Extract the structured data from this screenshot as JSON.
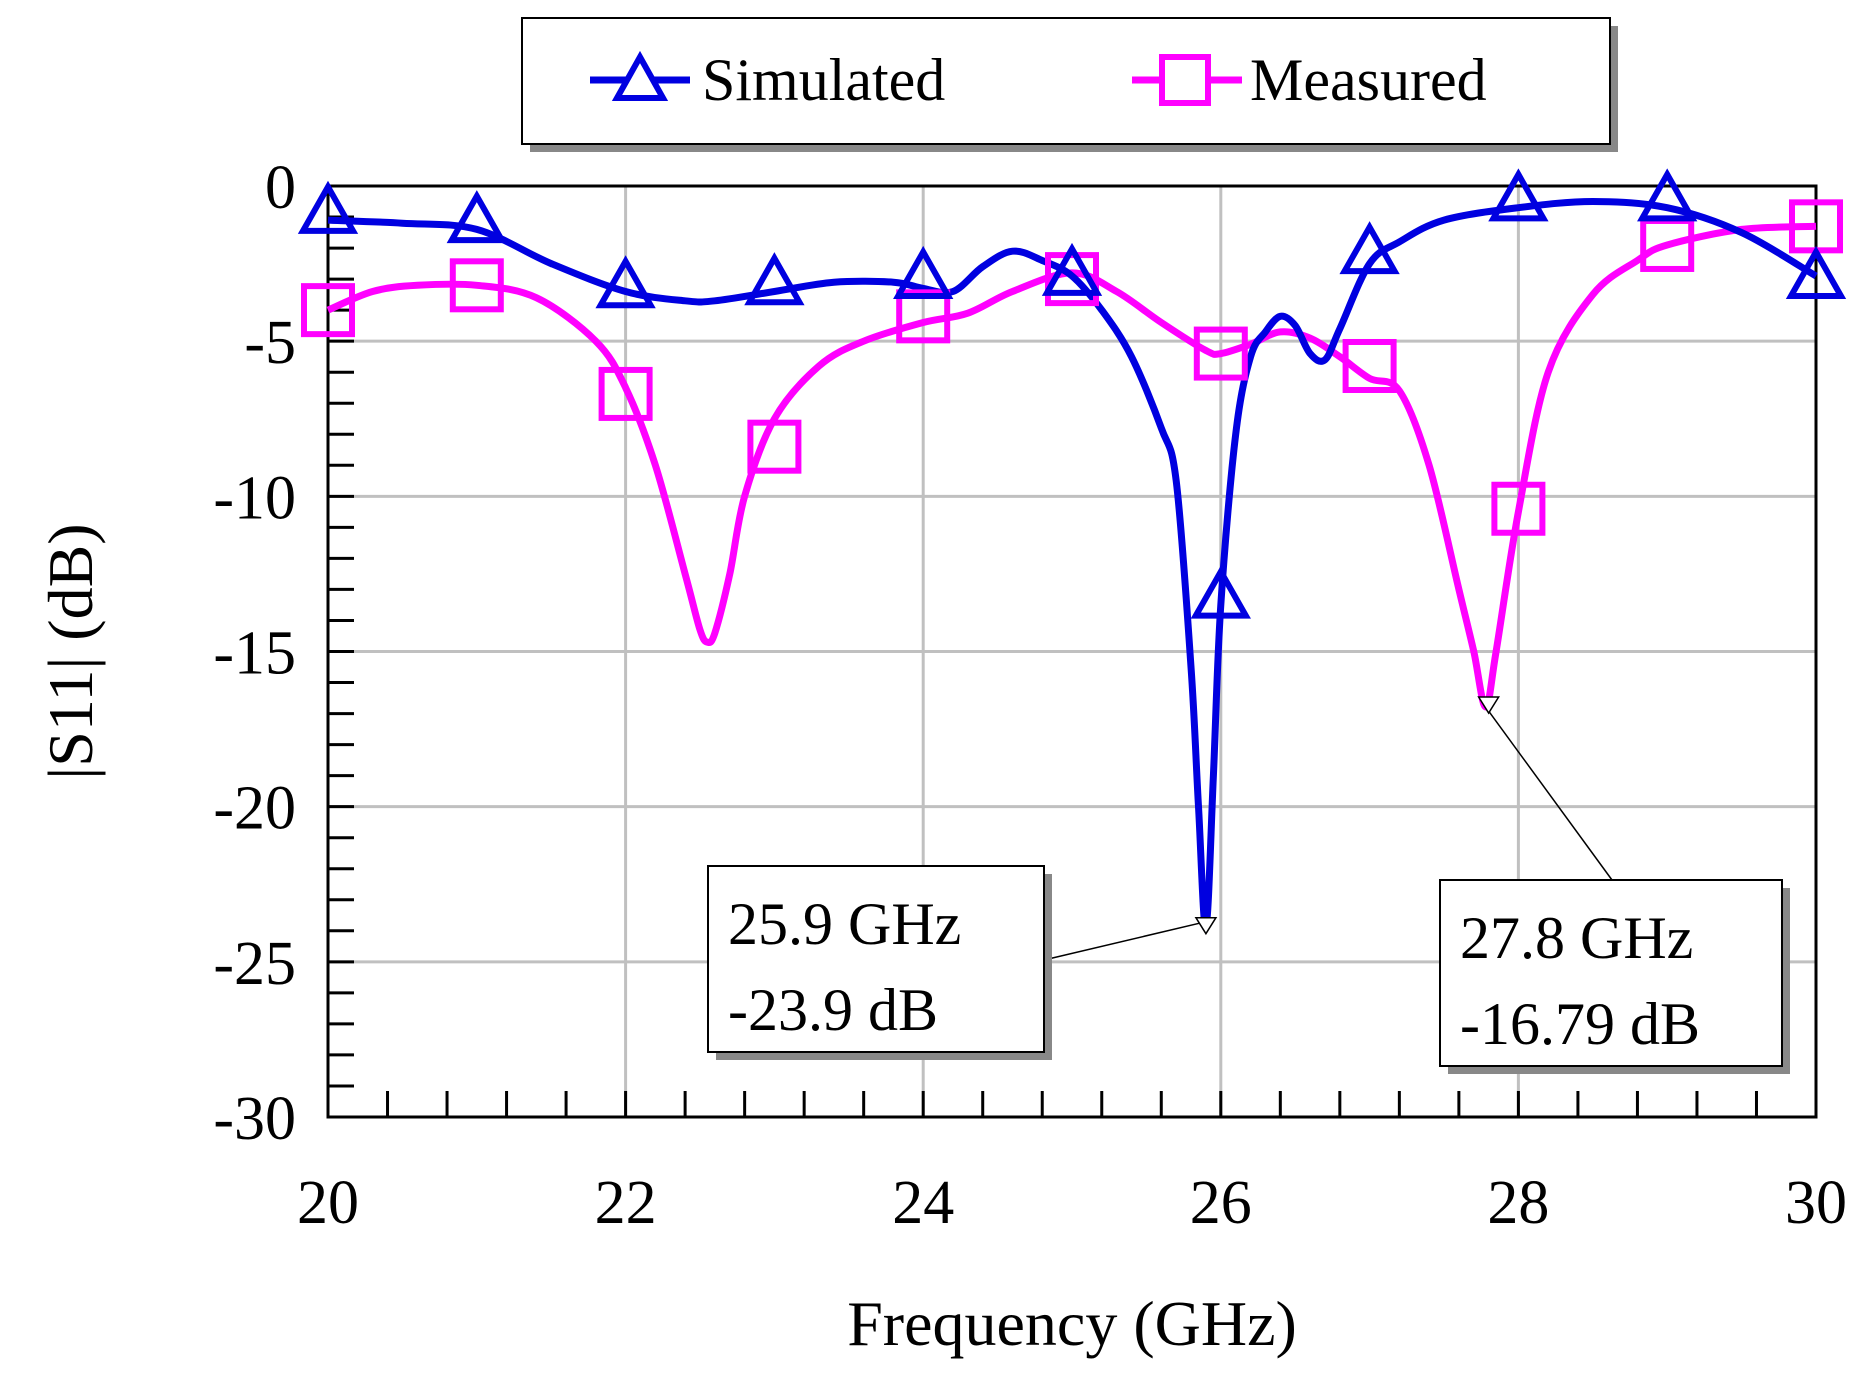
{
  "chart_data": {
    "type": "line",
    "xlabel": "Frequency (GHz)",
    "ylabel": "|S11| (dB)",
    "xlim": [
      20,
      30
    ],
    "ylim": [
      -30,
      0
    ],
    "xticks": [
      20,
      22,
      24,
      26,
      28,
      30
    ],
    "yticks": [
      0,
      -5,
      -10,
      -15,
      -20,
      -25,
      -30
    ],
    "xtick_labels": [
      "20",
      "22",
      "24",
      "26",
      "28",
      "30"
    ],
    "ytick_labels": [
      "0",
      "-5",
      "-10",
      "-15",
      "-20",
      "-25",
      "-30"
    ],
    "grid": true,
    "legend_position": "top-center",
    "series": [
      {
        "name": "Simulated",
        "color": "#0000e0",
        "marker": "triangle",
        "x": [
          20,
          20.5,
          21,
          21.5,
          22,
          22.4,
          22.6,
          23,
          23.4,
          23.8,
          24,
          24.2,
          24.4,
          24.6,
          24.8,
          25,
          25.2,
          25.4,
          25.6,
          25.7,
          25.8,
          25.85,
          25.9,
          25.95,
          26,
          26.1,
          26.2,
          26.3,
          26.4,
          26.5,
          26.6,
          26.7,
          26.8,
          27,
          27.2,
          27.5,
          28,
          28.5,
          29,
          29.5,
          30
        ],
        "y": [
          -1.1,
          -1.2,
          -1.4,
          -2.5,
          -3.4,
          -3.7,
          -3.7,
          -3.4,
          -3.1,
          -3.1,
          -3.3,
          -3.4,
          -2.6,
          -2.1,
          -2.4,
          -2.9,
          -4.0,
          -5.5,
          -7.8,
          -9.5,
          -15.5,
          -20.0,
          -23.9,
          -19.0,
          -13.5,
          -8.0,
          -5.5,
          -4.7,
          -4.2,
          -4.5,
          -5.4,
          -5.6,
          -4.6,
          -2.5,
          -1.8,
          -1.1,
          -0.7,
          -0.5,
          -0.7,
          -1.5,
          -2.9
        ],
        "marker_x": [
          20,
          21,
          22,
          23,
          24,
          25,
          26,
          27,
          28,
          29,
          30
        ],
        "marker_y": [
          -0.8,
          -1.1,
          -3.2,
          -3.1,
          -2.9,
          -2.8,
          -13.2,
          -2.1,
          -0.4,
          -0.4,
          -2.9
        ]
      },
      {
        "name": "Measured",
        "color": "#ff00ff",
        "marker": "square",
        "x": [
          20,
          20.3,
          20.6,
          21,
          21.4,
          21.8,
          22,
          22.2,
          22.4,
          22.5,
          22.55,
          22.6,
          22.7,
          22.8,
          23,
          23.3,
          23.6,
          24,
          24.3,
          24.6,
          25,
          25.3,
          25.6,
          25.9,
          26,
          26.2,
          26.4,
          26.6,
          26.8,
          27,
          27.2,
          27.4,
          27.6,
          27.7,
          27.78,
          27.85,
          28,
          28.2,
          28.5,
          28.8,
          29,
          29.5,
          30
        ],
        "y": [
          -4.0,
          -3.4,
          -3.2,
          -3.2,
          -3.6,
          -5.0,
          -6.5,
          -9.0,
          -12.5,
          -14.3,
          -14.7,
          -14.4,
          -12.5,
          -10.0,
          -7.5,
          -5.8,
          -5.0,
          -4.4,
          -4.1,
          -3.4,
          -2.8,
          -3.4,
          -4.4,
          -5.3,
          -5.4,
          -5.1,
          -4.7,
          -4.9,
          -5.5,
          -6.2,
          -6.6,
          -9.0,
          -13.0,
          -15.0,
          -16.79,
          -15.0,
          -10.5,
          -6.0,
          -3.5,
          -2.4,
          -1.9,
          -1.4,
          -1.3
        ],
        "marker_x": [
          20,
          21,
          22,
          23,
          24,
          25,
          26,
          27,
          28,
          29,
          30
        ],
        "marker_y": [
          -4.0,
          -3.2,
          -6.7,
          -8.4,
          -4.2,
          -3.0,
          -5.4,
          -5.8,
          -10.4,
          -1.9,
          -1.3
        ]
      }
    ],
    "annotations": [
      {
        "text_line1": "25.9 GHz",
        "text_line2": "-23.9 dB",
        "x": 25.9,
        "y": -23.9,
        "series": "Simulated"
      },
      {
        "text_line1": "27.8 GHz",
        "text_line2": "-16.79 dB",
        "x": 27.8,
        "y": -16.79,
        "series": "Measured"
      }
    ]
  }
}
